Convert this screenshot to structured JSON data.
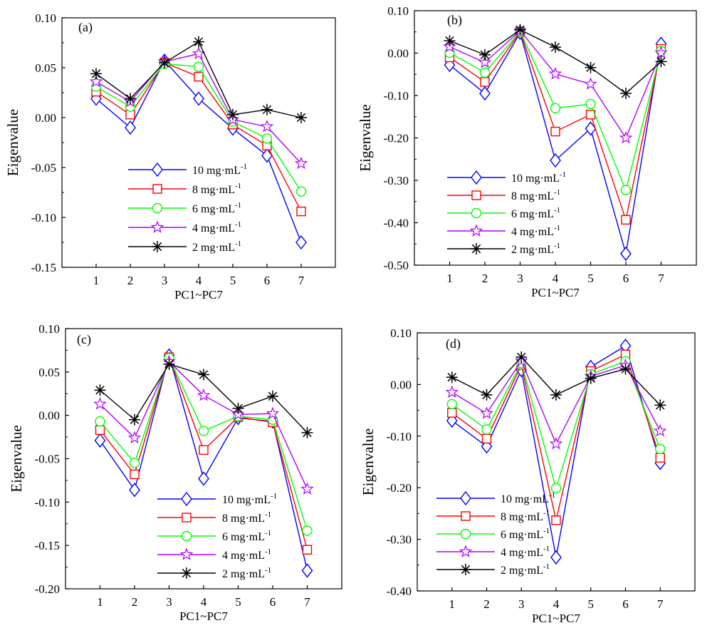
{
  "chart_data": [
    {
      "type": "line",
      "panel_label": "(a)",
      "categories": [
        "1",
        "2",
        "3",
        "4",
        "5",
        "6",
        "7"
      ],
      "xlabel": "PC1~PC7",
      "ylabel": "Eigenvalue",
      "ylim": [
        -0.15,
        0.1
      ],
      "yticks": [
        -0.15,
        -0.1,
        -0.05,
        0.0,
        0.05,
        0.1
      ],
      "ytick_labels": [
        "-0.15",
        "-0.10",
        "-0.05",
        "0.00",
        "0.05",
        "0.10"
      ],
      "legend_position": "lower-center",
      "series": [
        {
          "name": "10 mg·mL",
          "sup": "-1",
          "marker": "diamond",
          "color": "#0000ff",
          "values": [
            0.019,
            -0.01,
            0.057,
            0.019,
            -0.011,
            -0.038,
            -0.125
          ]
        },
        {
          "name": "8 mg·mL",
          "sup": "-1",
          "marker": "square",
          "color": "#ff0000",
          "values": [
            0.026,
            0.003,
            0.055,
            0.041,
            -0.007,
            -0.028,
            -0.094
          ]
        },
        {
          "name": "6 mg·mL",
          "sup": "-1",
          "marker": "circle",
          "color": "#00ff00",
          "values": [
            0.031,
            0.011,
            0.054,
            0.051,
            -0.004,
            -0.021,
            -0.074
          ]
        },
        {
          "name": "4 mg·mL",
          "sup": "-1",
          "marker": "star",
          "color": "#b400ff",
          "values": [
            0.036,
            0.016,
            0.056,
            0.064,
            -0.002,
            -0.009,
            -0.046
          ]
        },
        {
          "name": "2 mg·mL",
          "sup": "-1",
          "marker": "asterisk",
          "color": "#000000",
          "values": [
            0.044,
            0.019,
            0.055,
            0.076,
            0.003,
            0.008,
            0.0
          ]
        }
      ]
    },
    {
      "type": "line",
      "panel_label": "(b)",
      "categories": [
        "1",
        "2",
        "3",
        "4",
        "5",
        "6",
        "7"
      ],
      "xlabel": "PC1~PC7",
      "ylabel": "Eigenvalue",
      "ylim": [
        -0.5,
        0.1
      ],
      "yticks": [
        -0.5,
        -0.4,
        -0.3,
        -0.2,
        -0.1,
        0.0,
        0.1
      ],
      "ytick_labels": [
        "-0.50",
        "-0.40",
        "-0.30",
        "-0.20",
        "-0.10",
        "0.00",
        "0.10"
      ],
      "legend_position": "lower-left",
      "series": [
        {
          "name": "10 mg·mL",
          "sup": "-1",
          "marker": "diamond",
          "color": "#0000ff",
          "values": [
            -0.028,
            -0.095,
            0.048,
            -0.253,
            -0.178,
            -0.473,
            0.022
          ]
        },
        {
          "name": "8 mg·mL",
          "sup": "-1",
          "marker": "square",
          "color": "#ff0000",
          "values": [
            -0.01,
            -0.068,
            0.05,
            -0.185,
            -0.145,
            -0.393,
            0.01
          ]
        },
        {
          "name": "6 mg·mL",
          "sup": "-1",
          "marker": "circle",
          "color": "#00ff00",
          "values": [
            0.001,
            -0.046,
            0.051,
            -0.13,
            -0.12,
            -0.323,
            0.005
          ]
        },
        {
          "name": "4 mg·mL",
          "sup": "-1",
          "marker": "star",
          "color": "#b400ff",
          "values": [
            0.015,
            -0.022,
            0.053,
            -0.049,
            -0.073,
            -0.2,
            0.001
          ]
        },
        {
          "name": "2 mg·mL",
          "sup": "-1",
          "marker": "asterisk",
          "color": "#000000",
          "values": [
            0.029,
            -0.004,
            0.055,
            0.014,
            -0.034,
            -0.095,
            -0.02
          ]
        }
      ]
    },
    {
      "type": "line",
      "panel_label": "(c)",
      "categories": [
        "1",
        "2",
        "3",
        "4",
        "5",
        "6",
        "7"
      ],
      "xlabel": "PC1~PC7",
      "ylabel": "Eigenvalue",
      "ylim": [
        -0.2,
        0.1
      ],
      "yticks": [
        -0.2,
        -0.15,
        -0.1,
        -0.05,
        0.0,
        0.05,
        0.1
      ],
      "ytick_labels": [
        "-0.20",
        "-0.15",
        "-0.10",
        "-0.05",
        "0.00",
        "0.05",
        "0.10"
      ],
      "legend_position": "lower-right",
      "series": [
        {
          "name": "10 mg·mL",
          "sup": "-1",
          "marker": "diamond",
          "color": "#0000ff",
          "values": [
            -0.029,
            -0.086,
            0.069,
            -0.073,
            -0.003,
            -0.007,
            -0.179
          ]
        },
        {
          "name": "8 mg·mL",
          "sup": "-1",
          "marker": "square",
          "color": "#ff0000",
          "values": [
            -0.017,
            -0.068,
            0.067,
            -0.04,
            -0.002,
            -0.008,
            -0.155
          ]
        },
        {
          "name": "6 mg·mL",
          "sup": "-1",
          "marker": "circle",
          "color": "#00ff00",
          "values": [
            -0.007,
            -0.055,
            0.066,
            -0.018,
            -0.001,
            -0.005,
            -0.133
          ]
        },
        {
          "name": "4 mg·mL",
          "sup": "-1",
          "marker": "star",
          "color": "#b400ff",
          "values": [
            0.013,
            -0.026,
            0.062,
            0.023,
            0.001,
            0.002,
            -0.085
          ]
        },
        {
          "name": "2 mg·mL",
          "sup": "-1",
          "marker": "asterisk",
          "color": "#000000",
          "values": [
            0.029,
            -0.005,
            0.059,
            0.047,
            0.008,
            0.022,
            -0.02
          ]
        }
      ]
    },
    {
      "type": "line",
      "panel_label": "(d)",
      "categories": [
        "1",
        "2",
        "3",
        "4",
        "5",
        "6",
        "7"
      ],
      "xlabel": "PC1~PC7",
      "ylabel": "Eigenvalue",
      "ylim": [
        -0.4,
        0.1
      ],
      "yticks": [
        -0.4,
        -0.3,
        -0.2,
        -0.1,
        0.0,
        0.1
      ],
      "ytick_labels": [
        "-0.40",
        "-0.30",
        "-0.20",
        "-0.10",
        "0.00",
        "0.10"
      ],
      "legend_position": "lower-left",
      "series": [
        {
          "name": "10 mg·mL",
          "sup": "-1",
          "marker": "diamond",
          "color": "#0000ff",
          "values": [
            -0.07,
            -0.12,
            0.028,
            -0.335,
            0.034,
            0.075,
            -0.152
          ]
        },
        {
          "name": "8 mg·mL",
          "sup": "-1",
          "marker": "square",
          "color": "#ff0000",
          "values": [
            -0.055,
            -0.105,
            0.038,
            -0.263,
            0.026,
            0.058,
            -0.142
          ]
        },
        {
          "name": "6 mg·mL",
          "sup": "-1",
          "marker": "circle",
          "color": "#00ff00",
          "values": [
            -0.038,
            -0.087,
            0.042,
            -0.201,
            0.02,
            0.045,
            -0.125
          ]
        },
        {
          "name": "4 mg·mL",
          "sup": "-1",
          "marker": "star",
          "color": "#b400ff",
          "values": [
            -0.015,
            -0.056,
            0.046,
            -0.115,
            0.016,
            0.037,
            -0.09
          ]
        },
        {
          "name": "2 mg·mL",
          "sup": "-1",
          "marker": "asterisk",
          "color": "#000000",
          "values": [
            0.014,
            -0.02,
            0.053,
            -0.02,
            0.012,
            0.03,
            -0.04
          ]
        }
      ]
    }
  ]
}
